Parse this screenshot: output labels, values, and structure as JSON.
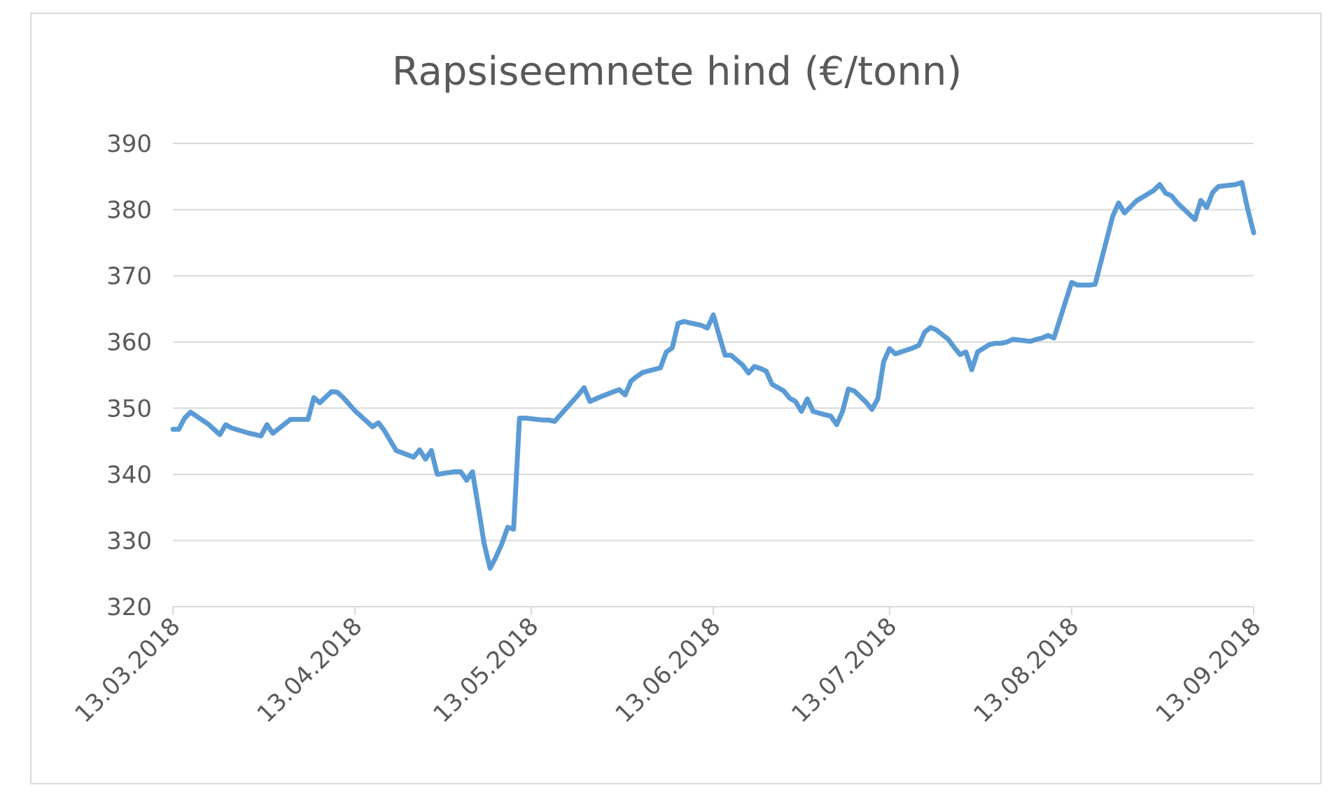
{
  "chart_data": {
    "type": "line",
    "title": "Rapsiseemnete hind (€/tonn)",
    "xlabel": "",
    "ylabel": "",
    "x_type": "date",
    "x_range": [
      "2018-03-13",
      "2018-09-13"
    ],
    "x_ticks": [
      "2018-03-13",
      "2018-04-13",
      "2018-05-13",
      "2018-06-13",
      "2018-07-13",
      "2018-08-13",
      "2018-09-13"
    ],
    "x_tick_labels": [
      "13.03.2018",
      "13.04.2018",
      "13.05.2018",
      "13.06.2018",
      "13.07.2018",
      "13.08.2018",
      "13.09.2018"
    ],
    "ylim": [
      320,
      390
    ],
    "y_ticks": [
      320,
      330,
      340,
      350,
      360,
      370,
      380,
      390
    ],
    "y_tick_labels": [
      "320",
      "330",
      "340",
      "350",
      "360",
      "370",
      "380",
      "390"
    ],
    "grid": true,
    "legend": "none",
    "series": [
      {
        "color": "#5B9BD5",
        "points": [
          [
            "2018-03-13",
            346.8
          ],
          [
            "2018-03-14",
            346.8
          ],
          [
            "2018-03-15",
            348.5
          ],
          [
            "2018-03-16",
            349.4
          ],
          [
            "2018-03-19",
            347.6
          ],
          [
            "2018-03-20",
            346.8
          ],
          [
            "2018-03-21",
            346.0
          ],
          [
            "2018-03-22",
            347.5
          ],
          [
            "2018-03-23",
            347.0
          ],
          [
            "2018-03-26",
            346.2
          ],
          [
            "2018-03-27",
            346.0
          ],
          [
            "2018-03-28",
            345.8
          ],
          [
            "2018-03-29",
            347.5
          ],
          [
            "2018-03-30",
            346.2
          ],
          [
            "2018-04-02",
            348.3
          ],
          [
            "2018-04-03",
            348.3
          ],
          [
            "2018-04-04",
            348.3
          ],
          [
            "2018-04-05",
            348.3
          ],
          [
            "2018-04-06",
            351.6
          ],
          [
            "2018-04-07",
            350.8
          ],
          [
            "2018-04-09",
            352.5
          ],
          [
            "2018-04-10",
            352.4
          ],
          [
            "2018-04-11",
            351.6
          ],
          [
            "2018-04-12",
            350.6
          ],
          [
            "2018-04-13",
            349.6
          ],
          [
            "2018-04-16",
            347.2
          ],
          [
            "2018-04-17",
            347.8
          ],
          [
            "2018-04-18",
            346.6
          ],
          [
            "2018-04-19",
            345.1
          ],
          [
            "2018-04-20",
            343.6
          ],
          [
            "2018-04-23",
            342.6
          ],
          [
            "2018-04-24",
            343.7
          ],
          [
            "2018-04-25",
            342.3
          ],
          [
            "2018-04-26",
            343.6
          ],
          [
            "2018-04-27",
            340.0
          ],
          [
            "2018-04-30",
            340.4
          ],
          [
            "2018-05-01",
            340.4
          ],
          [
            "2018-05-02",
            339.1
          ],
          [
            "2018-05-03",
            340.4
          ],
          [
            "2018-05-04",
            335.0
          ],
          [
            "2018-05-05",
            329.5
          ],
          [
            "2018-05-06",
            325.8
          ],
          [
            "2018-05-07",
            327.5
          ],
          [
            "2018-05-08",
            329.5
          ],
          [
            "2018-05-09",
            332.0
          ],
          [
            "2018-05-10",
            331.7
          ],
          [
            "2018-05-11",
            348.5
          ],
          [
            "2018-05-12",
            348.5
          ],
          [
            "2018-05-14",
            348.3
          ],
          [
            "2018-05-15",
            348.2
          ],
          [
            "2018-05-16",
            348.2
          ],
          [
            "2018-05-17",
            348.0
          ],
          [
            "2018-05-18",
            349.0
          ],
          [
            "2018-05-21",
            352.0
          ],
          [
            "2018-05-22",
            353.1
          ],
          [
            "2018-05-23",
            351.0
          ],
          [
            "2018-05-24",
            351.4
          ],
          [
            "2018-05-25",
            351.8
          ],
          [
            "2018-05-28",
            352.8
          ],
          [
            "2018-05-29",
            352.0
          ],
          [
            "2018-05-30",
            354.1
          ],
          [
            "2018-05-31",
            354.8
          ],
          [
            "2018-06-01",
            355.4
          ],
          [
            "2018-06-04",
            356.1
          ],
          [
            "2018-06-05",
            358.5
          ],
          [
            "2018-06-06",
            359.1
          ],
          [
            "2018-06-07",
            362.8
          ],
          [
            "2018-06-08",
            363.1
          ],
          [
            "2018-06-11",
            362.5
          ],
          [
            "2018-06-12",
            362.1
          ],
          [
            "2018-06-13",
            364.1
          ],
          [
            "2018-06-14",
            361.0
          ],
          [
            "2018-06-15",
            358.0
          ],
          [
            "2018-06-16",
            358.0
          ],
          [
            "2018-06-18",
            356.5
          ],
          [
            "2018-06-19",
            355.3
          ],
          [
            "2018-06-20",
            356.3
          ],
          [
            "2018-06-21",
            356.0
          ],
          [
            "2018-06-22",
            355.6
          ],
          [
            "2018-06-23",
            353.6
          ],
          [
            "2018-06-25",
            352.6
          ],
          [
            "2018-06-26",
            351.5
          ],
          [
            "2018-06-27",
            351.0
          ],
          [
            "2018-06-28",
            349.5
          ],
          [
            "2018-06-29",
            351.4
          ],
          [
            "2018-06-30",
            349.5
          ],
          [
            "2018-07-02",
            349.0
          ],
          [
            "2018-07-03",
            348.8
          ],
          [
            "2018-07-04",
            347.5
          ],
          [
            "2018-07-05",
            349.5
          ],
          [
            "2018-07-06",
            352.9
          ],
          [
            "2018-07-07",
            352.6
          ],
          [
            "2018-07-09",
            350.9
          ],
          [
            "2018-07-10",
            349.8
          ],
          [
            "2018-07-11",
            351.4
          ],
          [
            "2018-07-12",
            357.0
          ],
          [
            "2018-07-13",
            359.0
          ],
          [
            "2018-07-14",
            358.2
          ],
          [
            "2018-07-16",
            358.8
          ],
          [
            "2018-07-17",
            359.1
          ],
          [
            "2018-07-18",
            359.5
          ],
          [
            "2018-07-19",
            361.5
          ],
          [
            "2018-07-20",
            362.2
          ],
          [
            "2018-07-21",
            361.8
          ],
          [
            "2018-07-23",
            360.4
          ],
          [
            "2018-07-24",
            359.2
          ],
          [
            "2018-07-25",
            358.1
          ],
          [
            "2018-07-26",
            358.5
          ],
          [
            "2018-07-27",
            355.8
          ],
          [
            "2018-07-28",
            358.5
          ],
          [
            "2018-07-30",
            359.6
          ],
          [
            "2018-07-31",
            359.8
          ],
          [
            "2018-08-01",
            359.8
          ],
          [
            "2018-08-02",
            360.0
          ],
          [
            "2018-08-03",
            360.4
          ],
          [
            "2018-08-04",
            360.3
          ],
          [
            "2018-08-06",
            360.1
          ],
          [
            "2018-08-07",
            360.4
          ],
          [
            "2018-08-08",
            360.6
          ],
          [
            "2018-08-09",
            361.0
          ],
          [
            "2018-08-10",
            360.6
          ],
          [
            "2018-08-13",
            369.0
          ],
          [
            "2018-08-14",
            368.6
          ],
          [
            "2018-08-15",
            368.6
          ],
          [
            "2018-08-16",
            368.6
          ],
          [
            "2018-08-17",
            368.7
          ],
          [
            "2018-08-20",
            379.0
          ],
          [
            "2018-08-21",
            381.0
          ],
          [
            "2018-08-22",
            379.5
          ],
          [
            "2018-08-23",
            380.4
          ],
          [
            "2018-08-24",
            381.3
          ],
          [
            "2018-08-27",
            382.9
          ],
          [
            "2018-08-28",
            383.8
          ],
          [
            "2018-08-29",
            382.5
          ],
          [
            "2018-08-30",
            382.1
          ],
          [
            "2018-08-31",
            381.0
          ],
          [
            "2018-09-03",
            378.5
          ],
          [
            "2018-09-04",
            381.4
          ],
          [
            "2018-09-05",
            380.3
          ],
          [
            "2018-09-06",
            382.6
          ],
          [
            "2018-09-07",
            383.5
          ],
          [
            "2018-09-10",
            383.8
          ],
          [
            "2018-09-11",
            384.1
          ],
          [
            "2018-09-12",
            380.0
          ],
          [
            "2018-09-13",
            376.5
          ]
        ]
      }
    ]
  }
}
